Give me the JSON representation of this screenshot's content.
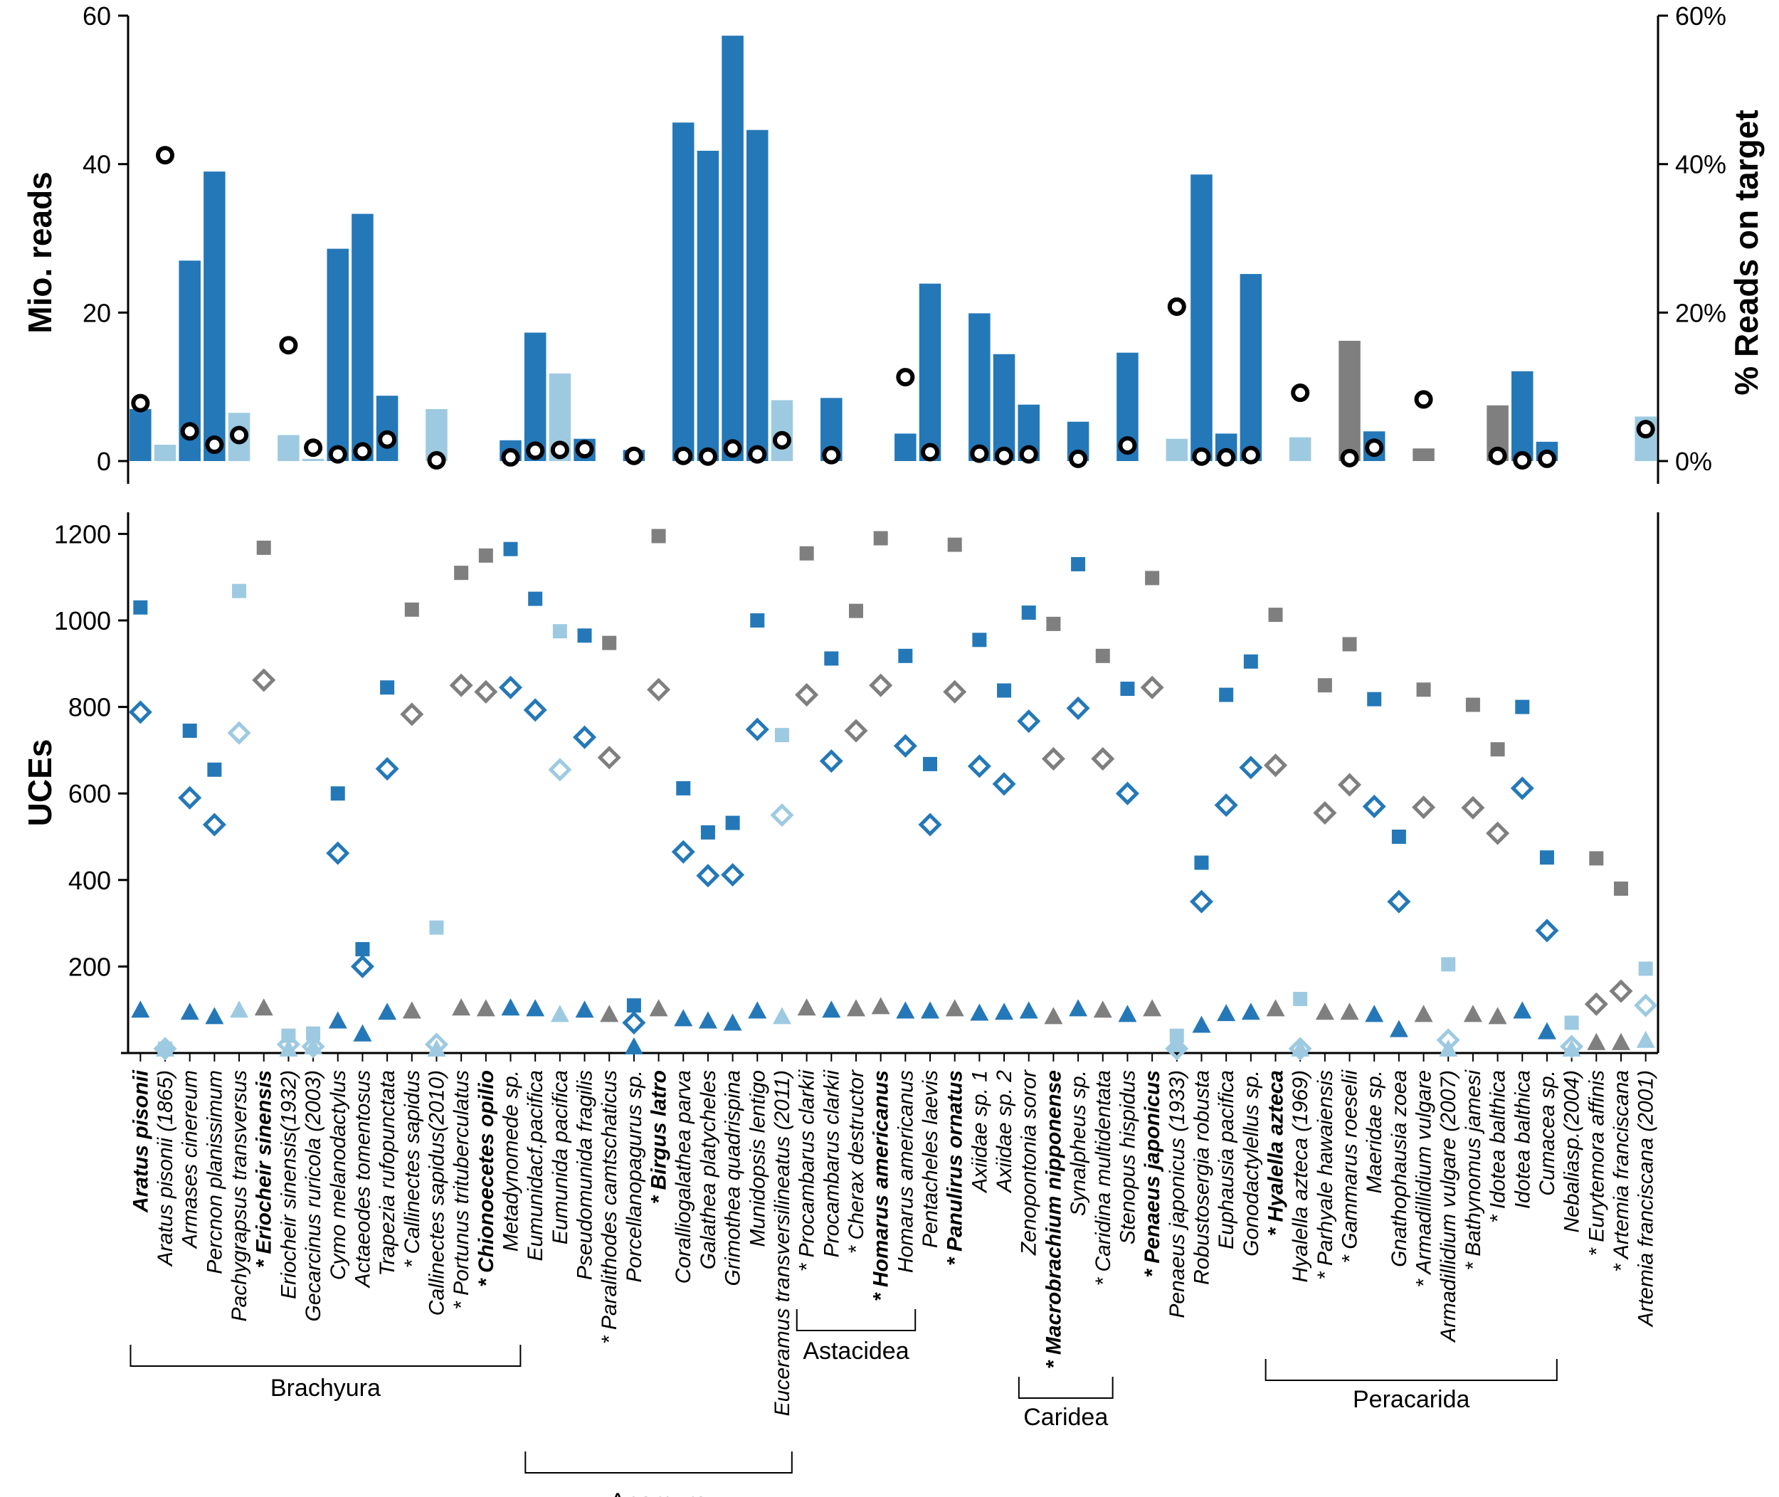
{
  "colors": {
    "dark_blue": "#2478b8",
    "light_blue": "#9ecae1",
    "grey": "#7f7f7f",
    "black": "#000000"
  },
  "chart_data": [
    {
      "type": "bar",
      "title": "",
      "ylabel": "Mio. reads",
      "y2label": "% Reads on target",
      "ylim": [
        0,
        60
      ],
      "y2lim": [
        0,
        60
      ],
      "yticks": [
        "0",
        "20",
        "40",
        "60"
      ],
      "y2ticks": [
        "0%",
        "20%",
        "40%",
        "60%"
      ],
      "series": [
        {
          "name": "Mio. reads",
          "type": "bar",
          "values": [
            7,
            2.2,
            27,
            39,
            6.5,
            0,
            3.5,
            0.3,
            28.6,
            33.3,
            8.8,
            0,
            7,
            0,
            0,
            2.8,
            17.3,
            11.8,
            3,
            0,
            1.5,
            0,
            45.6,
            41.8,
            57.3,
            44.6,
            8.2,
            0,
            8.5,
            0,
            0,
            3.7,
            23.9,
            0,
            19.9,
            14.4,
            7.6,
            0,
            5.3,
            0,
            14.6,
            0,
            3,
            38.6,
            3.7,
            25.2,
            0,
            3.2,
            0,
            16.2,
            4,
            0,
            1.7,
            0,
            0,
            7.5,
            12.1,
            2.6,
            0,
            0,
            0,
            6
          ]
        },
        {
          "name": "% Reads on target",
          "type": "scatter",
          "values": [
            7.8,
            41.2,
            4,
            2.2,
            3.5,
            15.6,
            1.8,
            0.9,
            1.3,
            2.9,
            0.1,
            0.5,
            1.4,
            1.5,
            1.6,
            0.7,
            0.7,
            0.6,
            1.7,
            0.9,
            2.8,
            0.8,
            11.3,
            1.2,
            1.0,
            0.7,
            0.9,
            0.3,
            2.1,
            20.8,
            0.6,
            0.5,
            0.8,
            9.2,
            0.4,
            1.8,
            8.3,
            0.7,
            0.1,
            0.3,
            4.3
          ],
          "categories_index": [
            0,
            1,
            2,
            3,
            4,
            6,
            7,
            8,
            9,
            10,
            12,
            15,
            16,
            17,
            18,
            20,
            22,
            23,
            24,
            25,
            26,
            28,
            31,
            32,
            34,
            35,
            36,
            38,
            40,
            42,
            43,
            44,
            45,
            47,
            49,
            50,
            52,
            55,
            56,
            57,
            61
          ]
        }
      ]
    },
    {
      "type": "scatter",
      "title": "",
      "ylabel": "UCEs",
      "ylim": [
        0,
        1250
      ],
      "yticks": [
        "200",
        "400",
        "600",
        "800",
        "1000",
        "1200"
      ],
      "series": [
        {
          "name": "filled squares",
          "marker": "square",
          "values": [
            1030,
            10,
            745,
            655,
            1068,
            1168,
            40,
            45,
            600,
            240,
            845,
            1025,
            290,
            1110,
            1150,
            1165,
            1050,
            975,
            965,
            948,
            110,
            1195,
            612,
            510,
            532,
            1000,
            735,
            1155,
            912,
            1022,
            1190,
            918,
            668,
            1175,
            955,
            838,
            1018,
            992,
            1130,
            918,
            842,
            1098,
            40,
            440,
            828,
            905,
            1013,
            125,
            850,
            945,
            818,
            500,
            840,
            205,
            805,
            702,
            800,
            452,
            70,
            450,
            380,
            195
          ]
        },
        {
          "name": "open diamonds",
          "marker": "diamond",
          "values": [
            788,
            10,
            590,
            528,
            740,
            862,
            20,
            15,
            462,
            200,
            657,
            783,
            20,
            850,
            835,
            845,
            793,
            655,
            730,
            683,
            70,
            840,
            465,
            410,
            412,
            748,
            550,
            828,
            675,
            745,
            850,
            710,
            528,
            835,
            663,
            622,
            767,
            680,
            797,
            680,
            600,
            845,
            10,
            350,
            573,
            660,
            665,
            10,
            555,
            620,
            570,
            350,
            568,
            30,
            567,
            508,
            612,
            283,
            15,
            113,
            143,
            110
          ]
        },
        {
          "name": "filled triangles",
          "marker": "triangle",
          "values": [
            100,
            10,
            95,
            85,
            100,
            105,
            10,
            15,
            75,
            45,
            95,
            98,
            10,
            105,
            103,
            105,
            103,
            90,
            100,
            90,
            15,
            103,
            80,
            75,
            70,
            98,
            85,
            105,
            100,
            103,
            108,
            98,
            98,
            103,
            93,
            95,
            98,
            85,
            103,
            100,
            90,
            103,
            20,
            65,
            92,
            95,
            103,
            10,
            95,
            95,
            90,
            55,
            90,
            10,
            90,
            85,
            98,
            50,
            10,
            25,
            25,
            30
          ]
        }
      ]
    }
  ],
  "categories": [
    {
      "label": "Aratus pisonii",
      "style": "bold",
      "shade": "dark_blue"
    },
    {
      "label": "Aratus pisonii (1865)",
      "style": "italic",
      "shade": "light_blue"
    },
    {
      "label": "Armases cinereum",
      "style": "italic",
      "shade": "dark_blue"
    },
    {
      "label": "Percnon planissimum",
      "style": "italic",
      "shade": "dark_blue"
    },
    {
      "label": "Pachygrapsus transversus",
      "style": "italic",
      "shade": "light_blue"
    },
    {
      "label": "* Eriocheir sinensis",
      "style": "bold",
      "shade": "grey"
    },
    {
      "label": "Eriocheir sinensis(1932)",
      "style": "italic",
      "shade": "light_blue"
    },
    {
      "label": "Gecarcinus ruricola (2003)",
      "style": "italic",
      "shade": "light_blue"
    },
    {
      "label": "Cymo melanodactylus",
      "style": "italic",
      "shade": "dark_blue"
    },
    {
      "label": "Actaeodes tomentosus",
      "style": "italic",
      "shade": "dark_blue"
    },
    {
      "label": "Trapezia rufopunctata",
      "style": "italic",
      "shade": "dark_blue"
    },
    {
      "label": "* Callinectes sapidus",
      "style": "italic",
      "shade": "grey"
    },
    {
      "label": "Callinectes sapidus(2010)",
      "style": "italic",
      "shade": "light_blue"
    },
    {
      "label": "* Portunus trituberculatus",
      "style": "italic",
      "shade": "grey"
    },
    {
      "label": "* Chionoecetes opilio",
      "style": "bold",
      "shade": "grey"
    },
    {
      "label": "Metadynomede sp.",
      "style": "italic",
      "shade": "dark_blue"
    },
    {
      "label": "Eumunidacf.pacifica",
      "style": "italic",
      "shade": "dark_blue"
    },
    {
      "label": "Eumunida pacifica",
      "style": "italic",
      "shade": "light_blue"
    },
    {
      "label": "Pseudomunida fragilis",
      "style": "italic",
      "shade": "dark_blue"
    },
    {
      "label": "* Paralithodes camtschaticus",
      "style": "italic",
      "shade": "grey"
    },
    {
      "label": "Porcellanopagurus sp.",
      "style": "italic",
      "shade": "dark_blue"
    },
    {
      "label": "* Birgus latro",
      "style": "bold",
      "shade": "grey"
    },
    {
      "label": "Coralliogalathea parva",
      "style": "italic",
      "shade": "dark_blue"
    },
    {
      "label": "Galathea platycheles",
      "style": "italic",
      "shade": "dark_blue"
    },
    {
      "label": "Grimothea quadrispina",
      "style": "italic",
      "shade": "dark_blue"
    },
    {
      "label": "Munidopsis lentigo",
      "style": "italic",
      "shade": "dark_blue"
    },
    {
      "label": "Euceramus transversilineatus (2011)",
      "style": "italic",
      "shade": "light_blue"
    },
    {
      "label": "* Procambarus clarkii",
      "style": "italic",
      "shade": "grey"
    },
    {
      "label": "Procambarus clarkii",
      "style": "italic",
      "shade": "dark_blue"
    },
    {
      "label": "* Cherax destructor",
      "style": "italic",
      "shade": "grey"
    },
    {
      "label": "* Homarus americanus",
      "style": "bold",
      "shade": "grey"
    },
    {
      "label": "Homarus americanus",
      "style": "italic",
      "shade": "dark_blue"
    },
    {
      "label": "Pentacheles laevis",
      "style": "italic",
      "shade": "dark_blue"
    },
    {
      "label": "* Panulirus ornatus",
      "style": "bold",
      "shade": "grey"
    },
    {
      "label": "Axiidae sp. 1",
      "style": "italic",
      "shade": "dark_blue"
    },
    {
      "label": "Axiidae sp. 2",
      "style": "italic",
      "shade": "dark_blue"
    },
    {
      "label": "Zenopontonia soror",
      "style": "italic",
      "shade": "dark_blue"
    },
    {
      "label": "* Macrobrachium nipponense",
      "style": "bold",
      "shade": "grey"
    },
    {
      "label": "Synalpheus sp.",
      "style": "italic",
      "shade": "dark_blue"
    },
    {
      "label": "* Caridina multidentata",
      "style": "italic",
      "shade": "grey"
    },
    {
      "label": "Stenopus hispidus",
      "style": "italic",
      "shade": "dark_blue"
    },
    {
      "label": "* Penaeus japonicus",
      "style": "bold",
      "shade": "grey"
    },
    {
      "label": "Penaeus japonicus (1933)",
      "style": "italic",
      "shade": "light_blue"
    },
    {
      "label": "Robustosergia robusta",
      "style": "italic",
      "shade": "dark_blue"
    },
    {
      "label": "Euphausia pacifica",
      "style": "italic",
      "shade": "dark_blue"
    },
    {
      "label": "Gonodactylellus sp.",
      "style": "italic",
      "shade": "dark_blue"
    },
    {
      "label": "* Hyalella azteca",
      "style": "bold",
      "shade": "grey"
    },
    {
      "label": "Hyalella azteca (1969)",
      "style": "italic",
      "shade": "light_blue"
    },
    {
      "label": "* Parhyale hawaiensis",
      "style": "italic",
      "shade": "grey"
    },
    {
      "label": "* Gammarus roeselii",
      "style": "italic",
      "shade": "grey"
    },
    {
      "label": "Maeridae sp.",
      "style": "italic",
      "shade": "dark_blue"
    },
    {
      "label": "Gnathophausia zoea",
      "style": "italic",
      "shade": "dark_blue"
    },
    {
      "label": "* Armadillidium vulgare",
      "style": "italic",
      "shade": "grey"
    },
    {
      "label": "Armadillidium vulgare (2007)",
      "style": "italic",
      "shade": "light_blue"
    },
    {
      "label": "* Bathynomus jamesi",
      "style": "italic",
      "shade": "grey"
    },
    {
      "label": "* Idotea balthica",
      "style": "italic",
      "shade": "grey"
    },
    {
      "label": "Idotea balthica",
      "style": "italic",
      "shade": "dark_blue"
    },
    {
      "label": "Cumacea sp.",
      "style": "italic",
      "shade": "dark_blue"
    },
    {
      "label": "Nebaliasp.(2004)",
      "style": "italic",
      "shade": "light_blue"
    },
    {
      "label": "* Eurytemora affinis",
      "style": "italic",
      "shade": "grey"
    },
    {
      "label": "* Artemia franciscana",
      "style": "italic",
      "shade": "grey"
    },
    {
      "label": "Artemia franciscana (2001)",
      "style": "italic",
      "shade": "light_blue"
    }
  ],
  "groups": [
    {
      "name": "Brachyura",
      "from": 0,
      "to": 15
    },
    {
      "name": "Anomura",
      "from": 16,
      "to": 26
    },
    {
      "name": "Astacidea",
      "from": 27,
      "to": 31
    },
    {
      "name": "Caridea",
      "from": 36,
      "to": 39
    },
    {
      "name": "Peracarida",
      "from": 46,
      "to": 57
    }
  ]
}
